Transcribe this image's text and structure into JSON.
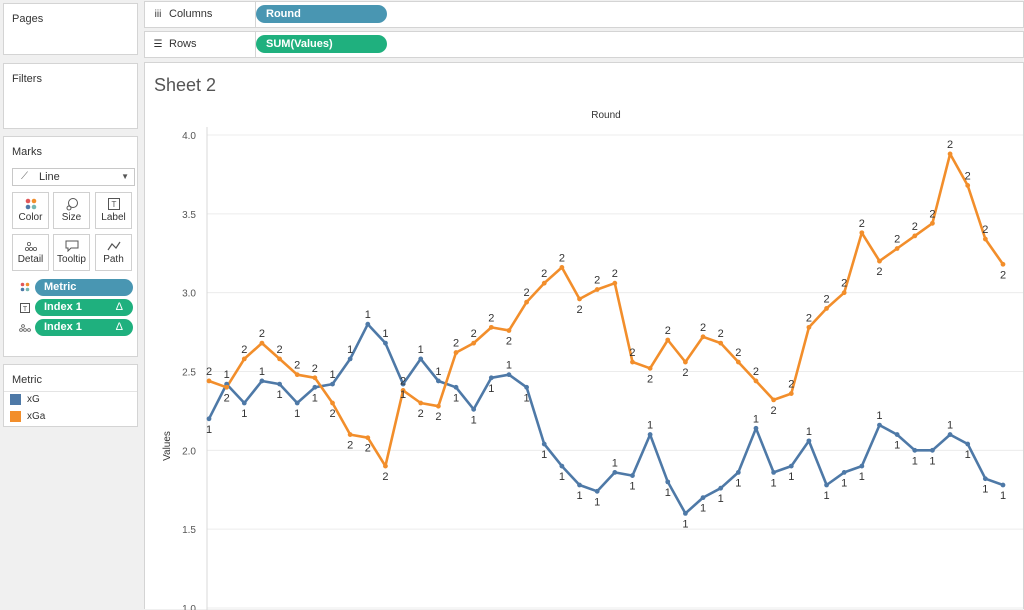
{
  "pages": {
    "title": "Pages"
  },
  "filters": {
    "title": "Filters"
  },
  "columns_shelf": {
    "label": "Columns",
    "icon": "columns-icon",
    "pill": "Round"
  },
  "rows_shelf": {
    "label": "Rows",
    "icon": "rows-icon",
    "pill": "SUM(Values)"
  },
  "marks": {
    "title": "Marks",
    "type": "Line",
    "buttons": {
      "color": "Color",
      "size": "Size",
      "label": "Label",
      "detail": "Detail",
      "tooltip": "Tooltip",
      "path": "Path"
    },
    "fields": [
      {
        "name": "Metric",
        "role": "color"
      },
      {
        "name": "Index 1",
        "role": "label",
        "delta": "Δ"
      },
      {
        "name": "Index 1",
        "role": "detail",
        "delta": "Δ"
      }
    ]
  },
  "legend": {
    "title": "Metric",
    "items": [
      {
        "name": "xG",
        "color": "#4e79a7"
      },
      {
        "name": "xGa",
        "color": "#f28e2b"
      }
    ]
  },
  "sheet": {
    "title": "Sheet 2"
  },
  "chart_data": {
    "type": "line",
    "title": "Round",
    "xlabel": "",
    "ylabel": "Values",
    "ylim": [
      1.0,
      4.0
    ],
    "yticks": [
      "1.0",
      "1.5",
      "2.0",
      "2.5",
      "3.0",
      "3.5",
      "4.0"
    ],
    "grid": true,
    "series": [
      {
        "name": "xG",
        "color": "#4e79a7",
        "label": "1",
        "values": [
          2.2,
          2.42,
          2.3,
          2.44,
          2.42,
          2.3,
          2.4,
          2.42,
          2.58,
          2.8,
          2.68,
          2.42,
          2.58,
          2.44,
          2.4,
          2.26,
          2.46,
          2.48,
          2.4,
          2.04,
          1.9,
          1.78,
          1.74,
          1.86,
          1.84,
          2.1,
          1.8,
          1.6,
          1.7,
          1.76,
          1.86,
          2.14,
          1.86,
          1.9,
          2.06,
          1.78,
          1.86,
          1.9,
          2.16,
          2.1,
          2.0,
          2.0,
          2.1,
          2.04,
          1.82,
          1.78
        ]
      },
      {
        "name": "xGa",
        "color": "#f28e2b",
        "label": "2",
        "values": [
          2.44,
          2.4,
          2.58,
          2.68,
          2.58,
          2.48,
          2.46,
          2.3,
          2.1,
          2.08,
          1.9,
          2.38,
          2.3,
          2.28,
          2.62,
          2.68,
          2.78,
          2.76,
          2.94,
          3.06,
          3.16,
          2.96,
          3.02,
          3.06,
          2.56,
          2.52,
          2.7,
          2.56,
          2.72,
          2.68,
          2.56,
          2.44,
          2.32,
          2.36,
          2.78,
          2.9,
          3.0,
          3.38,
          3.2,
          3.28,
          3.36,
          3.44,
          3.88,
          3.68,
          3.34,
          3.18
        ]
      }
    ]
  }
}
